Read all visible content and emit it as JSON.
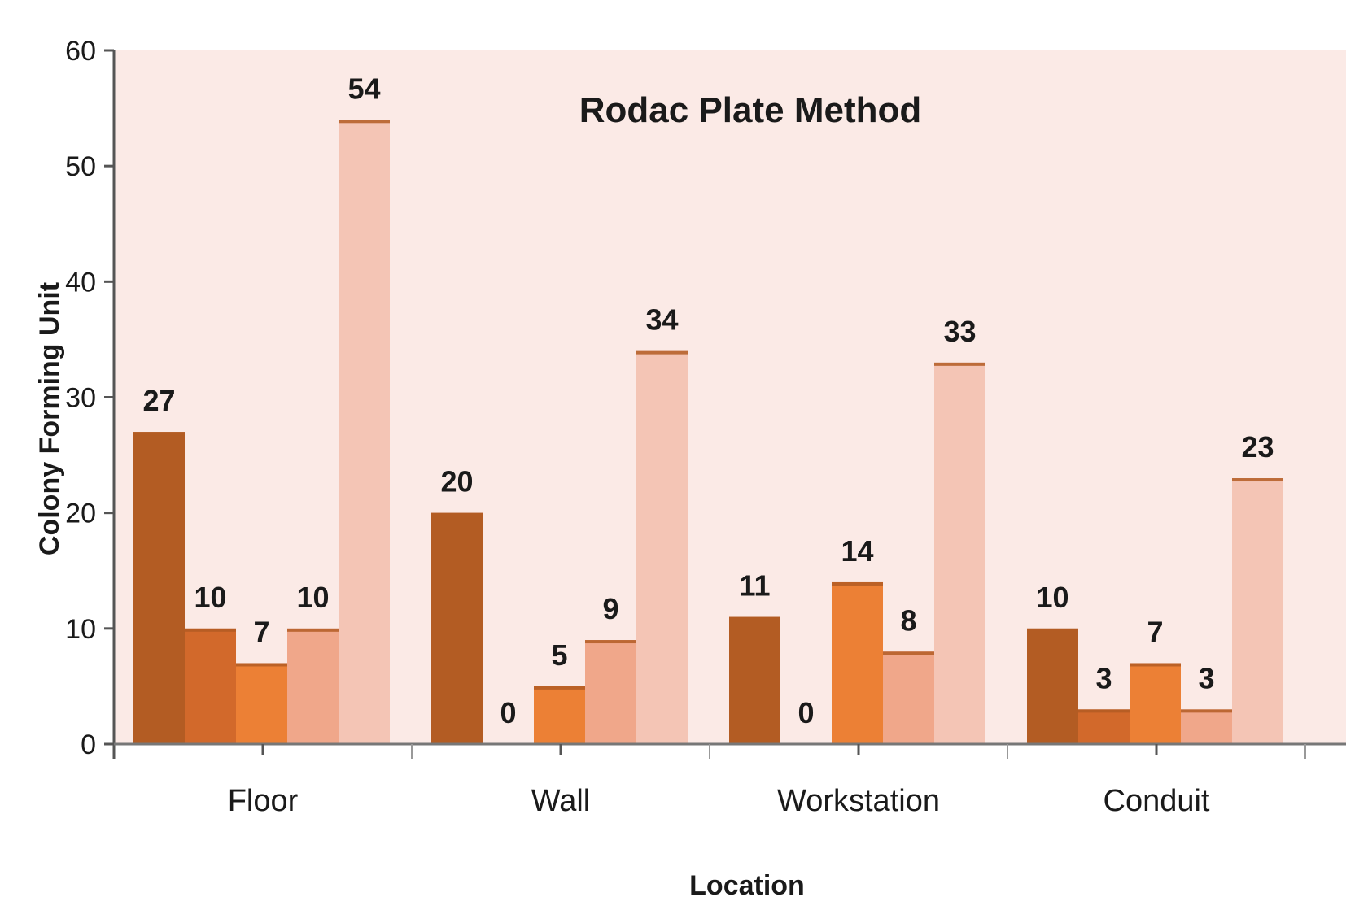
{
  "chart_data": {
    "type": "bar",
    "title": "Rodac Plate Method",
    "xlabel": "Location",
    "ylabel": "Colony Forming Unit",
    "ylim": [
      0,
      60
    ],
    "yticks": [
      0,
      10,
      20,
      30,
      40,
      50,
      60
    ],
    "categories": [
      "Floor",
      "Wall",
      "Workstation",
      "Conduit"
    ],
    "grid": false,
    "legend": "none",
    "plot_background": "#fbeae6",
    "series": [
      {
        "color": "#b35c23",
        "values": [
          27,
          20,
          11,
          10
        ]
      },
      {
        "color": "#d2692b",
        "values": [
          10,
          0,
          0,
          3
        ]
      },
      {
        "color": "#ec8035",
        "values": [
          7,
          5,
          14,
          7
        ]
      },
      {
        "color": "#f0a78a",
        "values": [
          10,
          9,
          8,
          3
        ]
      },
      {
        "color": "#f4c5b5",
        "values": [
          54,
          34,
          33,
          23
        ]
      }
    ]
  }
}
